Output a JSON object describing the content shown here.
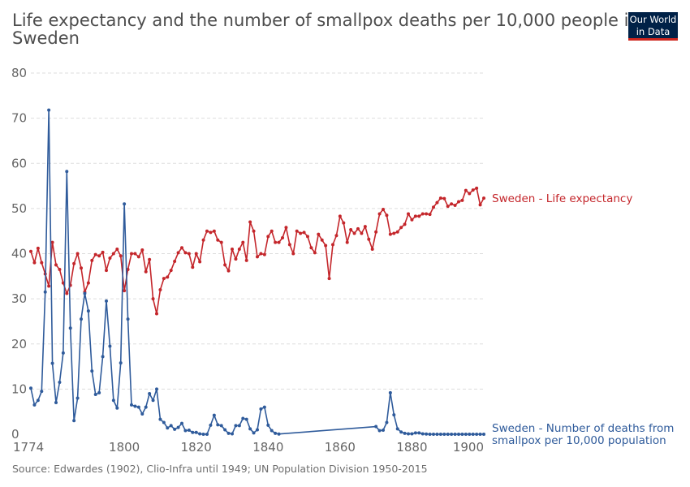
{
  "title": "Life expectancy and the number of smallpox deaths per 10,000 people in Sweden",
  "logo": {
    "line1": "Our World",
    "line2": "in Data"
  },
  "source": "Source: Edwardes (1902), Clio-Infra until 1949; UN Population Division 1950-2015",
  "colors": {
    "life": "#c4262b",
    "smallpox": "#2f5b9b",
    "grid": "#dddddd",
    "text": "#666666"
  },
  "chart_data": {
    "type": "line",
    "xlim": [
      1774,
      1900
    ],
    "ylim": [
      0,
      80
    ],
    "x_ticks": [
      1774,
      1800,
      1820,
      1840,
      1860,
      1880,
      1900
    ],
    "y_ticks": [
      0,
      10,
      20,
      30,
      40,
      50,
      60,
      70,
      80
    ],
    "grid": "horizontal dashed",
    "series": [
      {
        "name": "Sweden - Life expectancy",
        "color": "#c4262b",
        "points": [
          [
            1774,
            40.5
          ],
          [
            1775,
            38
          ],
          [
            1776,
            41.2
          ],
          [
            1777,
            38
          ],
          [
            1778,
            35.5
          ],
          [
            1779,
            32.8
          ],
          [
            1780,
            42.5
          ],
          [
            1781,
            37.5
          ],
          [
            1782,
            36.5
          ],
          [
            1783,
            33.5
          ],
          [
            1784,
            31.2
          ],
          [
            1785,
            33
          ],
          [
            1786,
            37.8
          ],
          [
            1787,
            40
          ],
          [
            1788,
            36.8
          ],
          [
            1789,
            31.5
          ],
          [
            1790,
            33.5
          ],
          [
            1791,
            38.5
          ],
          [
            1792,
            39.8
          ],
          [
            1793,
            39.5
          ],
          [
            1794,
            40.3
          ],
          [
            1795,
            36.3
          ],
          [
            1796,
            39
          ],
          [
            1797,
            40
          ],
          [
            1798,
            41
          ],
          [
            1799,
            39.5
          ],
          [
            1800,
            31.8
          ],
          [
            1801,
            36.5
          ],
          [
            1802,
            40
          ],
          [
            1803,
            40
          ],
          [
            1804,
            39.3
          ],
          [
            1805,
            40.8
          ],
          [
            1806,
            36
          ],
          [
            1807,
            38.7
          ],
          [
            1808,
            30
          ],
          [
            1809,
            26.7
          ],
          [
            1810,
            32
          ],
          [
            1811,
            34.5
          ],
          [
            1812,
            34.8
          ],
          [
            1813,
            36.3
          ],
          [
            1814,
            38.3
          ],
          [
            1815,
            40.2
          ],
          [
            1816,
            41.3
          ],
          [
            1817,
            40.2
          ],
          [
            1818,
            40
          ],
          [
            1819,
            37
          ],
          [
            1820,
            40
          ],
          [
            1821,
            38.2
          ],
          [
            1822,
            43
          ],
          [
            1823,
            45
          ],
          [
            1824,
            44.7
          ],
          [
            1825,
            45
          ],
          [
            1826,
            43
          ],
          [
            1827,
            42.5
          ],
          [
            1828,
            37.5
          ],
          [
            1829,
            36.2
          ],
          [
            1830,
            41
          ],
          [
            1831,
            38.8
          ],
          [
            1832,
            41
          ],
          [
            1833,
            42.5
          ],
          [
            1834,
            38.5
          ],
          [
            1835,
            47
          ],
          [
            1836,
            45
          ],
          [
            1837,
            39.3
          ],
          [
            1838,
            40
          ],
          [
            1839,
            39.8
          ],
          [
            1840,
            43.8
          ],
          [
            1841,
            45
          ],
          [
            1842,
            42.5
          ],
          [
            1843,
            42.5
          ],
          [
            1844,
            43.5
          ],
          [
            1845,
            45.8
          ],
          [
            1846,
            42
          ],
          [
            1847,
            40
          ],
          [
            1848,
            45
          ],
          [
            1849,
            44.5
          ],
          [
            1850,
            44.7
          ],
          [
            1851,
            43.8
          ],
          [
            1852,
            41.3
          ],
          [
            1853,
            40.2
          ],
          [
            1854,
            44.3
          ],
          [
            1855,
            43
          ],
          [
            1856,
            41.8
          ],
          [
            1857,
            34.5
          ],
          [
            1858,
            42
          ],
          [
            1859,
            44
          ],
          [
            1860,
            48.3
          ],
          [
            1861,
            46.8
          ],
          [
            1862,
            42.5
          ],
          [
            1863,
            45.3
          ],
          [
            1864,
            44.5
          ],
          [
            1865,
            45.5
          ],
          [
            1866,
            44.5
          ],
          [
            1867,
            46
          ],
          [
            1868,
            43.2
          ],
          [
            1869,
            41
          ],
          [
            1870,
            44.8
          ],
          [
            1871,
            48.8
          ],
          [
            1872,
            49.8
          ],
          [
            1873,
            48.5
          ],
          [
            1874,
            44.3
          ],
          [
            1875,
            44.5
          ],
          [
            1876,
            44.8
          ],
          [
            1877,
            45.8
          ],
          [
            1878,
            46.5
          ],
          [
            1879,
            48.8
          ],
          [
            1880,
            47.5
          ],
          [
            1881,
            48.3
          ],
          [
            1882,
            48.3
          ],
          [
            1883,
            48.8
          ],
          [
            1884,
            48.8
          ],
          [
            1885,
            48.7
          ],
          [
            1886,
            50.3
          ],
          [
            1887,
            51.3
          ],
          [
            1888,
            52.3
          ],
          [
            1889,
            52.2
          ],
          [
            1890,
            50.5
          ],
          [
            1891,
            51
          ],
          [
            1892,
            50.7
          ],
          [
            1893,
            51.5
          ],
          [
            1894,
            51.8
          ],
          [
            1895,
            54
          ],
          [
            1896,
            53.3
          ],
          [
            1897,
            54.1
          ],
          [
            1898,
            54.5
          ],
          [
            1899,
            50.8
          ],
          [
            1900,
            52.3
          ]
        ]
      },
      {
        "name": "Sweden - Number of deaths from smallpox per 10,000 population",
        "color": "#2f5b9b",
        "points": [
          [
            1774,
            10.2
          ],
          [
            1775,
            6.5
          ],
          [
            1776,
            7.5
          ],
          [
            1777,
            9.5
          ],
          [
            1778,
            31.5
          ],
          [
            1779,
            71.8
          ],
          [
            1780,
            15.7
          ],
          [
            1781,
            7
          ],
          [
            1782,
            11.5
          ],
          [
            1783,
            18
          ],
          [
            1784,
            58.2
          ],
          [
            1785,
            23.5
          ],
          [
            1786,
            3
          ],
          [
            1787,
            8
          ],
          [
            1788,
            25.5
          ],
          [
            1789,
            31.2
          ],
          [
            1790,
            27.3
          ],
          [
            1791,
            14
          ],
          [
            1792,
            8.8
          ],
          [
            1793,
            9.2
          ],
          [
            1794,
            17.2
          ],
          [
            1795,
            29.5
          ],
          [
            1796,
            19.5
          ],
          [
            1797,
            7.5
          ],
          [
            1798,
            5.8
          ],
          [
            1799,
            15.8
          ],
          [
            1800,
            51
          ],
          [
            1801,
            25.5
          ],
          [
            1802,
            6.5
          ],
          [
            1803,
            6.2
          ],
          [
            1804,
            6
          ],
          [
            1805,
            4.5
          ],
          [
            1806,
            6
          ],
          [
            1807,
            9
          ],
          [
            1808,
            7.5
          ],
          [
            1809,
            10
          ],
          [
            1810,
            3.3
          ],
          [
            1811,
            2.6
          ],
          [
            1812,
            1.4
          ],
          [
            1813,
            1.9
          ],
          [
            1814,
            1.1
          ],
          [
            1815,
            1.5
          ],
          [
            1816,
            2.4
          ],
          [
            1817,
            0.8
          ],
          [
            1818,
            0.9
          ],
          [
            1819,
            0.4
          ],
          [
            1820,
            0.4
          ],
          [
            1821,
            0.1
          ],
          [
            1822,
            0
          ],
          [
            1823,
            0
          ],
          [
            1824,
            2
          ],
          [
            1825,
            4.2
          ],
          [
            1826,
            2.1
          ],
          [
            1827,
            1.9
          ],
          [
            1828,
            1
          ],
          [
            1829,
            0.2
          ],
          [
            1830,
            0.1
          ],
          [
            1831,
            1.9
          ],
          [
            1832,
            1.9
          ],
          [
            1833,
            3.5
          ],
          [
            1834,
            3.3
          ],
          [
            1835,
            1.2
          ],
          [
            1836,
            0.3
          ],
          [
            1837,
            1
          ],
          [
            1838,
            5.6
          ],
          [
            1839,
            6
          ],
          [
            1840,
            2
          ],
          [
            1841,
            0.8
          ],
          [
            1842,
            0.2
          ],
          [
            1843,
            0.05
          ],
          [
            1870,
            1.7
          ],
          [
            1871,
            0.8
          ],
          [
            1872,
            0.9
          ],
          [
            1873,
            2.6
          ],
          [
            1874,
            9.2
          ],
          [
            1875,
            4.3
          ],
          [
            1876,
            1.2
          ],
          [
            1877,
            0.5
          ],
          [
            1878,
            0.2
          ],
          [
            1879,
            0.1
          ],
          [
            1880,
            0.1
          ],
          [
            1881,
            0.3
          ],
          [
            1882,
            0.3
          ],
          [
            1883,
            0.1
          ],
          [
            1884,
            0.05
          ],
          [
            1885,
            0
          ],
          [
            1886,
            0
          ],
          [
            1887,
            0
          ],
          [
            1888,
            0
          ],
          [
            1889,
            0
          ],
          [
            1890,
            0
          ],
          [
            1891,
            0
          ],
          [
            1892,
            0
          ],
          [
            1893,
            0
          ],
          [
            1894,
            0
          ],
          [
            1895,
            0
          ],
          [
            1896,
            0
          ],
          [
            1897,
            0
          ],
          [
            1898,
            0
          ],
          [
            1899,
            0
          ],
          [
            1900,
            0
          ]
        ]
      }
    ]
  },
  "labels": {
    "life": "Sweden - Life expectancy",
    "smallpox_line1": "Sweden - Number of deaths from",
    "smallpox_line2": "smallpox per 10,000 population"
  }
}
